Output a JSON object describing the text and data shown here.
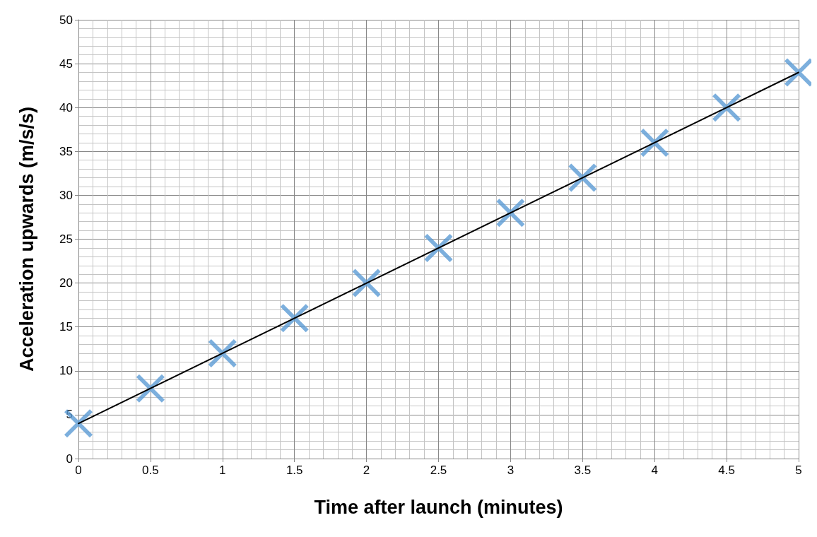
{
  "chart_data": {
    "type": "scatter",
    "xlabel": "Time after launch (minutes)",
    "ylabel": "Acceleration upwards (m/s/s)",
    "xlim": [
      0,
      5
    ],
    "xticks": [
      0,
      0.5,
      1,
      1.5,
      2,
      2.5,
      3,
      3.5,
      4,
      4.5,
      5
    ],
    "ylim": [
      0,
      50
    ],
    "yticks": [
      0,
      5,
      10,
      15,
      20,
      25,
      30,
      35,
      40,
      45,
      50
    ],
    "grid": true,
    "marker": "cross",
    "series": [
      {
        "color": "#5b9bd5",
        "x": [
          0,
          0.5,
          1,
          1.5,
          2,
          2.5,
          3,
          3.5,
          4,
          4.5,
          5
        ],
        "values": [
          4,
          8,
          12,
          16,
          20,
          24,
          28,
          32,
          36,
          40,
          44
        ]
      },
      {
        "type": "line",
        "color": "#000000",
        "marker": "none",
        "line_style": "solid",
        "x": [
          0,
          5
        ],
        "values": [
          4,
          44
        ]
      }
    ]
  }
}
